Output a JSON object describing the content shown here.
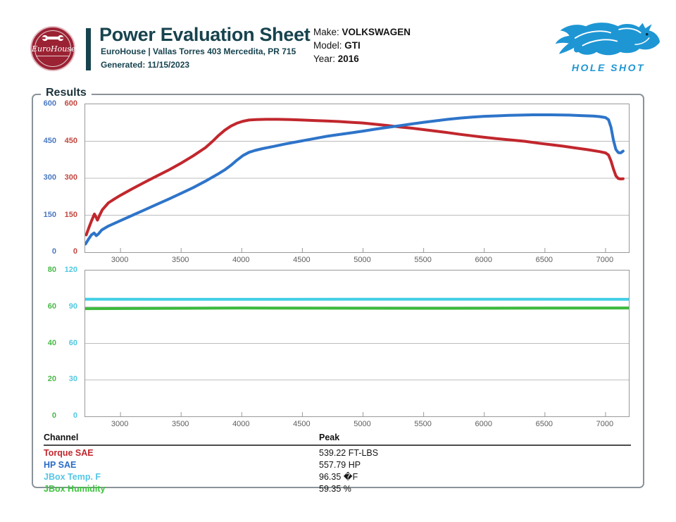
{
  "header": {
    "logo_text": "EuroHouse",
    "title": "Power Evaluation Sheet",
    "address": "EuroHouse | Vallas Torres 403 Mercedita, PR 715",
    "generated": "Generated: 11/15/2023",
    "vehicle": {
      "make_label": "Make: ",
      "make": "VOLKSWAGEN",
      "model_label": "Model: ",
      "model": "GTI",
      "year_label": "Year: ",
      "year": "2016"
    },
    "holeshot_text": "HOLE SHOT"
  },
  "results_legend": "Results",
  "colors": {
    "title_teal": "#17434f",
    "brand_red": "#9b2233",
    "brand_blue": "#1e96d4",
    "grid": "#bcbcbc",
    "plot_border": "#999999",
    "x_label": "#5d5d5d"
  },
  "chart_data": [
    {
      "type": "line",
      "title": "",
      "xlabel": "",
      "x_range": [
        2709,
        7192
      ],
      "x_ticks": [
        3000,
        3500,
        4000,
        4500,
        5000,
        5500,
        6000,
        6500,
        7000
      ],
      "grid": true,
      "axes": [
        {
          "label": "HP SAE",
          "color": "#4a78c2",
          "range": [
            0,
            600
          ],
          "ticks": [
            600,
            450,
            300,
            150,
            0
          ]
        },
        {
          "label": "Torque SAE",
          "color": "#c2473f",
          "range": [
            0,
            600
          ],
          "ticks": [
            600,
            450,
            300,
            150,
            0
          ]
        }
      ],
      "series": [
        {
          "name": "Torque SAE",
          "color": "#c1272d",
          "axis": 1,
          "width": 4,
          "points": [
            [
              2718,
              70
            ],
            [
              2740,
              100
            ],
            [
              2762,
              128
            ],
            [
              2785,
              155
            ],
            [
              2798,
              143
            ],
            [
              2810,
              130
            ],
            [
              2828,
              150
            ],
            [
              2850,
              172
            ],
            [
              2900,
              200
            ],
            [
              2950,
              216
            ],
            [
              3000,
              231
            ],
            [
              3100,
              258
            ],
            [
              3200,
              284
            ],
            [
              3300,
              309
            ],
            [
              3400,
              334
            ],
            [
              3500,
              361
            ],
            [
              3600,
              391
            ],
            [
              3700,
              424
            ],
            [
              3760,
              450
            ],
            [
              3810,
              474
            ],
            [
              3860,
              495
            ],
            [
              3910,
              511
            ],
            [
              3960,
              523
            ],
            [
              4010,
              531
            ],
            [
              4060,
              536
            ],
            [
              4120,
              538
            ],
            [
              4200,
              539
            ],
            [
              4300,
              539
            ],
            [
              4400,
              538
            ],
            [
              4500,
              536
            ],
            [
              4600,
              534
            ],
            [
              4700,
              532
            ],
            [
              4800,
              530
            ],
            [
              4900,
              527
            ],
            [
              5000,
              524
            ],
            [
              5100,
              519
            ],
            [
              5200,
              514
            ],
            [
              5300,
              508
            ],
            [
              5400,
              503
            ],
            [
              5500,
              497
            ],
            [
              5600,
              491
            ],
            [
              5700,
              485
            ],
            [
              5800,
              478
            ],
            [
              5900,
              472
            ],
            [
              6000,
              466
            ],
            [
              6100,
              461
            ],
            [
              6200,
              456
            ],
            [
              6330,
              450
            ],
            [
              6450,
              442
            ],
            [
              6550,
              436
            ],
            [
              6650,
              430
            ],
            [
              6750,
              423
            ],
            [
              6850,
              416
            ],
            [
              6950,
              408
            ],
            [
              7000,
              403
            ],
            [
              7025,
              394
            ],
            [
              7045,
              370
            ],
            [
              7065,
              338
            ],
            [
              7085,
              310
            ],
            [
              7105,
              299
            ],
            [
              7125,
              297
            ],
            [
              7145,
              298
            ]
          ]
        },
        {
          "name": "HP SAE",
          "color": "#2e74c9",
          "axis": 0,
          "width": 4,
          "points": [
            [
              2712,
              33
            ],
            [
              2735,
              52
            ],
            [
              2760,
              70
            ],
            [
              2782,
              78
            ],
            [
              2800,
              67
            ],
            [
              2818,
              74
            ],
            [
              2845,
              90
            ],
            [
              2900,
              106
            ],
            [
              3000,
              128
            ],
            [
              3100,
              150
            ],
            [
              3200,
              172
            ],
            [
              3300,
              194
            ],
            [
              3400,
              216
            ],
            [
              3500,
              239
            ],
            [
              3600,
              262
            ],
            [
              3700,
              288
            ],
            [
              3800,
              316
            ],
            [
              3860,
              334
            ],
            [
              3910,
              352
            ],
            [
              3960,
              373
            ],
            [
              4010,
              392
            ],
            [
              4060,
              405
            ],
            [
              4110,
              413
            ],
            [
              4170,
              420
            ],
            [
              4260,
              429
            ],
            [
              4360,
              439
            ],
            [
              4480,
              450
            ],
            [
              4600,
              461
            ],
            [
              4700,
              470
            ],
            [
              4800,
              477
            ],
            [
              4900,
              484
            ],
            [
              5000,
              491
            ],
            [
              5100,
              499
            ],
            [
              5200,
              506
            ],
            [
              5300,
              513
            ],
            [
              5400,
              520
            ],
            [
              5500,
              527
            ],
            [
              5600,
              533
            ],
            [
              5700,
              539
            ],
            [
              5800,
              544
            ],
            [
              5900,
              548
            ],
            [
              6000,
              551
            ],
            [
              6100,
              553
            ],
            [
              6200,
              555
            ],
            [
              6300,
              556
            ],
            [
              6400,
              557
            ],
            [
              6550,
              557
            ],
            [
              6700,
              556
            ],
            [
              6800,
              554
            ],
            [
              6900,
              552
            ],
            [
              6950,
              550
            ],
            [
              7000,
              546
            ],
            [
              7025,
              537
            ],
            [
              7045,
              507
            ],
            [
              7065,
              455
            ],
            [
              7085,
              417
            ],
            [
              7105,
              404
            ],
            [
              7125,
              403
            ],
            [
              7145,
              410
            ]
          ]
        }
      ]
    },
    {
      "type": "line",
      "title": "",
      "xlabel": "",
      "x_range": [
        2709,
        7192
      ],
      "x_ticks": [
        3000,
        3500,
        4000,
        4500,
        5000,
        5500,
        6000,
        6500,
        7000
      ],
      "grid": true,
      "axes": [
        {
          "label": "JBox Humidity",
          "color": "#48b848",
          "range": [
            0,
            80
          ],
          "ticks": [
            80,
            60,
            40,
            20,
            0
          ]
        },
        {
          "label": "JBox Temp. F",
          "color": "#52c8e0",
          "range": [
            0,
            120
          ],
          "ticks": [
            120,
            90,
            60,
            30,
            0
          ]
        }
      ],
      "series": [
        {
          "name": "JBox Temp. F",
          "color": "#42cfe6",
          "axis": 1,
          "width": 4,
          "points": [
            [
              2709,
              96.4
            ],
            [
              4000,
              96.3
            ],
            [
              5500,
              96.4
            ],
            [
              7192,
              96.3
            ]
          ]
        },
        {
          "name": "JBox Humidity",
          "color": "#3cba3c",
          "axis": 0,
          "width": 4,
          "points": [
            [
              2709,
              59.1
            ],
            [
              4000,
              59.4
            ],
            [
              5500,
              59.3
            ],
            [
              7192,
              59.4
            ]
          ]
        }
      ]
    }
  ],
  "table": {
    "headers": [
      "Channel",
      "Peak"
    ],
    "rows": [
      {
        "channel": "Torque SAE",
        "peak": "539.22 FT-LBS",
        "color": "#c1272d"
      },
      {
        "channel": "HP SAE",
        "peak": "557.79 HP",
        "color": "#2a6bc6"
      },
      {
        "channel": "JBox Temp. F",
        "peak": "96.35 �F",
        "color": "#55c6e6"
      },
      {
        "channel": "JBox Humidity",
        "peak": "59.35 %",
        "color": "#3cc43c"
      }
    ]
  }
}
